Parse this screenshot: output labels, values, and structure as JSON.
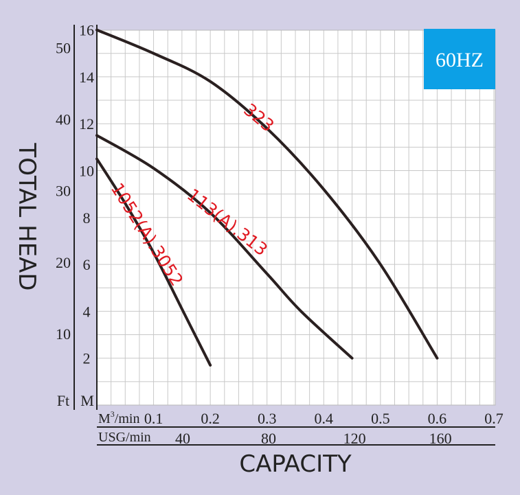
{
  "chart_data": {
    "type": "line",
    "ylabel": "TOTAL HEAD",
    "xlabel": "CAPACITY",
    "badge": "60HZ",
    "badge_color": "#0ca0e6",
    "curve_color": "#2a2020",
    "label_color": "#e01a22",
    "x_primary": {
      "unit_label": "M",
      "unit_sup": "3",
      "unit_suffix": "/min",
      "ticks": [
        "0.1",
        "0.2",
        "0.3",
        "0.4",
        "0.5",
        "0.6",
        "0.7"
      ],
      "range": [
        0,
        0.7
      ]
    },
    "x_secondary": {
      "unit_label": "USG/min",
      "ticks": [
        "40",
        "80",
        "120",
        "160"
      ]
    },
    "y_primary": {
      "unit_label": "M",
      "ticks": [
        "2",
        "4",
        "6",
        "8",
        "10",
        "12",
        "14",
        "16"
      ],
      "range": [
        0,
        16
      ]
    },
    "y_secondary": {
      "unit_label": "Ft",
      "ticks": [
        "10",
        "20",
        "30",
        "40",
        "50"
      ]
    },
    "series": [
      {
        "name": "323",
        "x": [
          0,
          0.1,
          0.2,
          0.3,
          0.4,
          0.5,
          0.6
        ],
        "y": [
          16,
          15,
          13.8,
          11.8,
          9.2,
          6.0,
          2.0
        ]
      },
      {
        "name": "113(A).313",
        "x": [
          0,
          0.1,
          0.2,
          0.3,
          0.36,
          0.45
        ],
        "y": [
          11.5,
          10.1,
          8.2,
          5.6,
          4.0,
          2.0
        ]
      },
      {
        "name": "1052(A).3052",
        "x": [
          0,
          0.05,
          0.1,
          0.15,
          0.2
        ],
        "y": [
          10.5,
          8.6,
          6.5,
          4.1,
          1.7
        ]
      }
    ]
  }
}
